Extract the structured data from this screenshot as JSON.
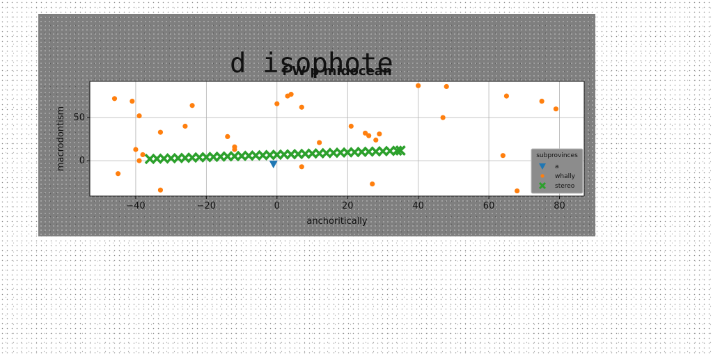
{
  "figure": {
    "suptitle": "d isophote"
  },
  "chart_data": {
    "type": "scatter",
    "title": "f W p midocean",
    "xlabel": "anchoritically",
    "ylabel": "macrodontism",
    "xlim": [
      -53,
      87
    ],
    "ylim": [
      -41,
      92
    ],
    "xticks": [
      -40,
      -20,
      0,
      20,
      40,
      60,
      80
    ],
    "yticks": [
      0,
      50
    ],
    "grid": true,
    "legend": {
      "title": "subprovinces",
      "placement": "lower right"
    },
    "series": [
      {
        "name": "a",
        "marker": "triangle-down",
        "color": "#1f77b4",
        "points": [
          [
            -1,
            -4
          ]
        ]
      },
      {
        "name": "whally",
        "marker": "circle",
        "color": "#ff7f0e",
        "points": [
          [
            -46,
            72
          ],
          [
            -41,
            69
          ],
          [
            -39,
            52
          ],
          [
            -40,
            13
          ],
          [
            -38,
            7
          ],
          [
            -39,
            0
          ],
          [
            -45,
            -15
          ],
          [
            -33,
            33
          ],
          [
            -33,
            -34
          ],
          [
            -26,
            40
          ],
          [
            -24,
            64
          ],
          [
            -14,
            28
          ],
          [
            -12,
            16
          ],
          [
            -12,
            13
          ],
          [
            0,
            66
          ],
          [
            3,
            75
          ],
          [
            4,
            77
          ],
          [
            7,
            62
          ],
          [
            7,
            -7
          ],
          [
            12,
            21
          ],
          [
            21,
            40
          ],
          [
            25,
            32
          ],
          [
            26,
            29
          ],
          [
            28,
            24
          ],
          [
            29,
            31
          ],
          [
            27,
            -27
          ],
          [
            40,
            87
          ],
          [
            47,
            50
          ],
          [
            48,
            86
          ],
          [
            64,
            6
          ],
          [
            65,
            75
          ],
          [
            68,
            -35
          ],
          [
            75,
            69
          ],
          [
            79,
            60
          ]
        ]
      },
      {
        "name": "stereo",
        "marker": "x",
        "color": "#2ca02c",
        "points": [
          [
            -36,
            2
          ],
          [
            -34,
            2.3
          ],
          [
            -32,
            2.5
          ],
          [
            -30,
            2.8
          ],
          [
            -28,
            3
          ],
          [
            -26,
            3.3
          ],
          [
            -24,
            3.6
          ],
          [
            -22,
            3.9
          ],
          [
            -20,
            4.1
          ],
          [
            -18,
            4.4
          ],
          [
            -16,
            4.7
          ],
          [
            -14,
            5
          ],
          [
            -12,
            5.2
          ],
          [
            -10,
            5.5
          ],
          [
            -8,
            5.8
          ],
          [
            -6,
            6.1
          ],
          [
            -4,
            6.3
          ],
          [
            -2,
            6.6
          ],
          [
            0,
            6.9
          ],
          [
            2,
            7.2
          ],
          [
            4,
            7.4
          ],
          [
            6,
            7.7
          ],
          [
            8,
            8
          ],
          [
            10,
            8.3
          ],
          [
            12,
            8.5
          ],
          [
            14,
            8.8
          ],
          [
            16,
            9.1
          ],
          [
            18,
            9.4
          ],
          [
            20,
            9.6
          ],
          [
            22,
            9.9
          ],
          [
            24,
            10.2
          ],
          [
            26,
            10.5
          ],
          [
            28,
            10.7
          ],
          [
            30,
            11
          ],
          [
            32,
            11.3
          ],
          [
            34,
            11.6
          ],
          [
            35,
            11.8
          ]
        ]
      }
    ]
  }
}
